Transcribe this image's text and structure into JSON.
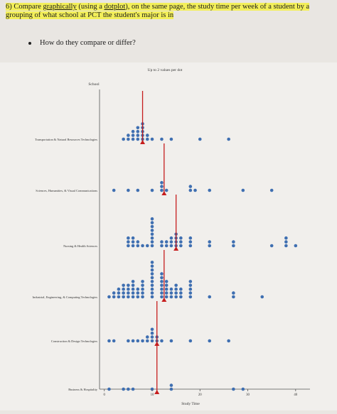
{
  "question": {
    "number": "6)",
    "part1": "Compare ",
    "graphically": "graphically",
    "part2": " (using a ",
    "dotplot": "dotplot",
    "part3": "), on the same page, the study time per week of a student by a grouping of what school at PCT the student's major is in"
  },
  "bullet": {
    "text": "How do they compare or differ?"
  },
  "colors": {
    "dot": "#3f6fb1",
    "median": "#c61d1d",
    "highlight": "#f3ef5a"
  },
  "chart_data": {
    "type": "scatter",
    "subtitle": "Up to 2 values per dot",
    "ylabel": "School",
    "xlabel": "Study Time",
    "xlim": [
      -1,
      43
    ],
    "xticks": [
      0,
      10,
      20,
      30,
      40
    ],
    "categories": [
      "Transportation & Natural Resources Technologies",
      "Sciences, Humanities, & Visual Communications",
      "Nursing & Health Sciences",
      "Industrial, Engineering, & Computing Technologies",
      "Construction & Design Technologies",
      "Business & Hospitality"
    ],
    "medians": [
      8,
      12.5,
      15,
      12.5,
      11,
      11
    ],
    "series": [
      {
        "points": [
          [
            4,
            1
          ],
          [
            5,
            2
          ],
          [
            6,
            3
          ],
          [
            7,
            4
          ],
          [
            8,
            5
          ],
          [
            9,
            2
          ],
          [
            10,
            1
          ],
          [
            12,
            1
          ],
          [
            14,
            1
          ],
          [
            20,
            1
          ],
          [
            26,
            1
          ]
        ]
      },
      {
        "points": [
          [
            2,
            1
          ],
          [
            5,
            1
          ],
          [
            7,
            1
          ],
          [
            10,
            1
          ],
          [
            12,
            3
          ],
          [
            13,
            1
          ],
          [
            18,
            2
          ],
          [
            19,
            1
          ],
          [
            22,
            1
          ],
          [
            29,
            1
          ],
          [
            35,
            1
          ]
        ]
      },
      {
        "points": [
          [
            5,
            3
          ],
          [
            6,
            3
          ],
          [
            7,
            2
          ],
          [
            8,
            1
          ],
          [
            9,
            1
          ],
          [
            10,
            8
          ],
          [
            12,
            2
          ],
          [
            13,
            2
          ],
          [
            14,
            3
          ],
          [
            15,
            4
          ],
          [
            16,
            3
          ],
          [
            18,
            3
          ],
          [
            22,
            2
          ],
          [
            27,
            2
          ],
          [
            35,
            1
          ],
          [
            38,
            3
          ],
          [
            40,
            1
          ]
        ]
      },
      {
        "points": [
          [
            1,
            1
          ],
          [
            2,
            2
          ],
          [
            3,
            3
          ],
          [
            4,
            4
          ],
          [
            5,
            4
          ],
          [
            6,
            5
          ],
          [
            7,
            3
          ],
          [
            8,
            5
          ],
          [
            10,
            10
          ],
          [
            12,
            7
          ],
          [
            13,
            5
          ],
          [
            14,
            3
          ],
          [
            15,
            4
          ],
          [
            16,
            3
          ],
          [
            18,
            5
          ],
          [
            22,
            1
          ],
          [
            27,
            2
          ],
          [
            33,
            1
          ]
        ]
      },
      {
        "points": [
          [
            1,
            1
          ],
          [
            2,
            1
          ],
          [
            5,
            1
          ],
          [
            6,
            1
          ],
          [
            7,
            1
          ],
          [
            8,
            1
          ],
          [
            9,
            2
          ],
          [
            10,
            4
          ],
          [
            11,
            2
          ],
          [
            12,
            1
          ],
          [
            14,
            1
          ],
          [
            18,
            1
          ],
          [
            22,
            1
          ],
          [
            26,
            1
          ]
        ]
      },
      {
        "points": [
          [
            1,
            1
          ],
          [
            4,
            1
          ],
          [
            5,
            1
          ],
          [
            6,
            1
          ],
          [
            10,
            1
          ],
          [
            14,
            2
          ],
          [
            27,
            1
          ],
          [
            29,
            1
          ]
        ]
      }
    ]
  }
}
